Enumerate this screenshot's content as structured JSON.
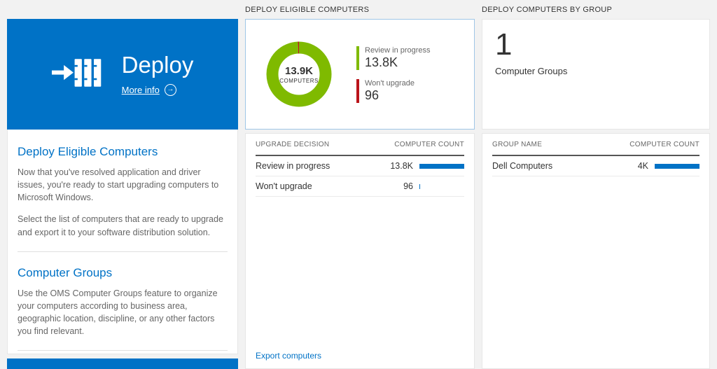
{
  "colors": {
    "accent": "#0072c6",
    "green": "#7fba00",
    "red": "#ba141a",
    "bar": "#0072c6"
  },
  "left_panel": {
    "tile": {
      "title": "Deploy",
      "more_info": "More info",
      "arrow_glyph": "→"
    },
    "sections": [
      {
        "heading": "Deploy Eligible Computers",
        "paragraphs": [
          "Now that you've resolved application and driver issues, you're ready to start upgrading computers to Microsoft Windows.",
          "Select the list of computers that are ready to upgrade and export it to your software distribution solution."
        ]
      },
      {
        "heading": "Computer Groups",
        "paragraphs": [
          "Use the OMS Computer Groups feature to organize your computers according to business area, geographic location, discipline, or any other factors you find relevant."
        ]
      }
    ]
  },
  "middle_panel": {
    "header": "DEPLOY ELIGIBLE COMPUTERS",
    "donut": {
      "center_value": "13.9K",
      "center_label": "COMPUTERS",
      "segments": [
        {
          "label": "Review in progress",
          "value": 13800,
          "display": "13.8K",
          "color": "#7fba00"
        },
        {
          "label": "Won't upgrade",
          "value": 96,
          "display": "96",
          "color": "#ba141a"
        }
      ]
    },
    "table": {
      "col1": "UPGRADE DECISION",
      "col2": "COMPUTER COUNT",
      "rows": [
        {
          "label": "Review in progress",
          "value": "13.8K",
          "bar_pct": 100
        },
        {
          "label": "Won't upgrade",
          "value": "96",
          "bar_pct": 2
        }
      ]
    },
    "export_link": "Export computers"
  },
  "right_panel": {
    "header": "DEPLOY COMPUTERS BY GROUP",
    "count_value": "1",
    "count_label": "Computer Groups",
    "table": {
      "col1": "GROUP NAME",
      "col2": "COMPUTER COUNT",
      "rows": [
        {
          "label": "Dell Computers",
          "value": "4K",
          "bar_pct": 100
        }
      ]
    }
  }
}
